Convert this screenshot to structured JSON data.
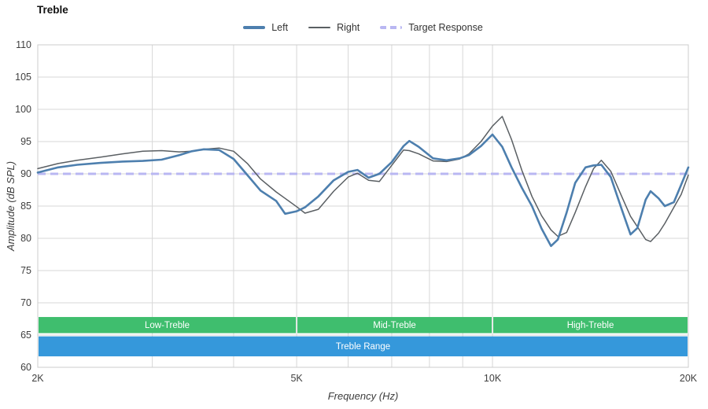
{
  "chart_data": {
    "type": "line",
    "title": "Treble",
    "xlabel": "Frequency (Hz)",
    "ylabel": "Amplitude (dB SPL)",
    "x_scale": "log",
    "x_unit": "kHz",
    "xlim": [
      2,
      20
    ],
    "ylim": [
      60,
      110
    ],
    "x_ticks": [
      {
        "value": 2,
        "label": "2K"
      },
      {
        "value": 5,
        "label": "5K"
      },
      {
        "value": 10,
        "label": "10K"
      },
      {
        "value": 20,
        "label": "20K"
      }
    ],
    "x_gridlines": [
      2,
      3,
      4,
      5,
      6,
      7,
      8,
      9,
      10,
      20
    ],
    "y_ticks": [
      60,
      65,
      70,
      75,
      80,
      85,
      90,
      95,
      100,
      105,
      110
    ],
    "x": [
      2.0,
      2.15,
      2.3,
      2.5,
      2.7,
      2.9,
      3.1,
      3.3,
      3.45,
      3.6,
      3.8,
      4.0,
      4.2,
      4.4,
      4.65,
      4.8,
      5.0,
      5.15,
      5.4,
      5.7,
      6.0,
      6.2,
      6.45,
      6.7,
      7.0,
      7.3,
      7.45,
      7.7,
      8.1,
      8.5,
      8.9,
      9.2,
      9.6,
      10.0,
      10.35,
      10.7,
      11.1,
      11.5,
      11.9,
      12.3,
      12.6,
      13.0,
      13.4,
      13.9,
      14.3,
      14.7,
      15.2,
      15.8,
      16.3,
      16.7,
      17.2,
      17.5,
      18.0,
      18.4,
      19.0,
      19.5,
      20.0
    ],
    "series": [
      {
        "name": "Left",
        "color": "#4d7fae",
        "width": 2.6,
        "values": [
          90.2,
          91.0,
          91.4,
          91.7,
          91.9,
          92.0,
          92.2,
          92.9,
          93.5,
          93.8,
          93.7,
          92.3,
          89.8,
          87.4,
          85.8,
          83.8,
          84.2,
          84.8,
          86.5,
          89.0,
          90.3,
          90.6,
          89.4,
          90.0,
          91.8,
          94.3,
          95.1,
          94.2,
          92.4,
          92.1,
          92.4,
          92.9,
          94.3,
          96.1,
          94.2,
          91.0,
          87.8,
          85.0,
          81.5,
          78.8,
          79.8,
          84.0,
          88.6,
          91.0,
          91.3,
          91.4,
          89.5,
          84.5,
          80.6,
          81.6,
          86.0,
          87.3,
          86.2,
          85.0,
          85.6,
          88.3,
          91.0
        ]
      },
      {
        "name": "Right",
        "color": "#5a5f63",
        "width": 1.5,
        "values": [
          90.8,
          91.6,
          92.1,
          92.6,
          93.1,
          93.5,
          93.6,
          93.4,
          93.5,
          93.8,
          94.0,
          93.5,
          91.6,
          89.2,
          87.2,
          86.2,
          84.9,
          83.9,
          84.5,
          87.3,
          89.5,
          90.1,
          89.0,
          88.8,
          91.3,
          93.7,
          93.6,
          93.1,
          92.0,
          91.9,
          92.3,
          93.1,
          95.0,
          97.4,
          98.9,
          95.3,
          90.5,
          86.5,
          83.5,
          81.3,
          80.3,
          80.9,
          84.0,
          88.0,
          90.8,
          92.1,
          90.4,
          86.5,
          83.4,
          81.8,
          79.8,
          79.5,
          80.8,
          82.3,
          84.8,
          86.8,
          89.8
        ]
      }
    ],
    "target": {
      "name": "Target Response",
      "color": "#b9b7f2",
      "width": 3,
      "dash": "10 6",
      "value": 90
    },
    "bands": {
      "text_color": "#ffffff",
      "rows": [
        {
          "label": "Low-Treble",
          "from": 2,
          "to": 5,
          "color": "#3fbe6e",
          "y": [
            65.3,
            67.8
          ]
        },
        {
          "label": "Mid-Treble",
          "from": 5,
          "to": 10,
          "color": "#3fbe6e",
          "y": [
            65.3,
            67.8
          ]
        },
        {
          "label": "High-Treble",
          "from": 10,
          "to": 20,
          "color": "#3fbe6e",
          "y": [
            65.3,
            67.8
          ]
        },
        {
          "label": "Treble Range",
          "from": 2,
          "to": 20,
          "color": "#3598db",
          "y": [
            61.7,
            64.8
          ]
        }
      ]
    },
    "colors": {
      "grid": "#d7d7d7",
      "border": "#cccccc",
      "axis_text": "#404040"
    }
  }
}
